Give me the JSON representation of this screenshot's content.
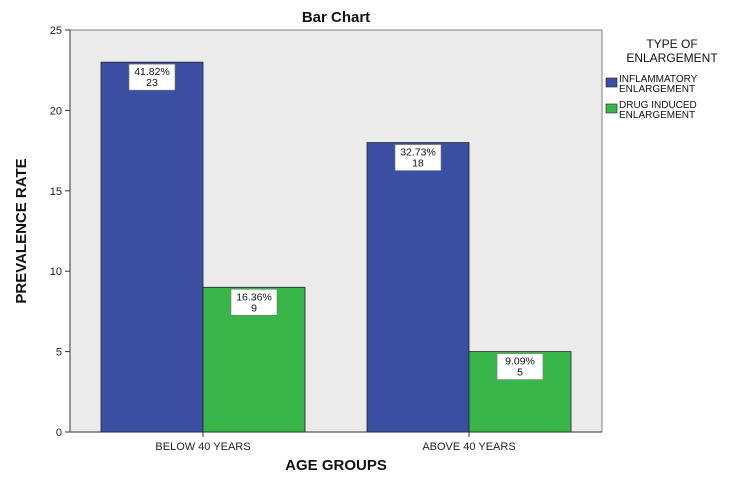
{
  "chart_data": {
    "type": "bar",
    "title": "Bar Chart",
    "xlabel": "AGE GROUPS",
    "ylabel": "PREVALENCE RATE",
    "categories": [
      "BELOW 40 YEARS",
      "ABOVE 40 YEARS"
    ],
    "ylim": [
      0,
      25
    ],
    "yticks": [
      0,
      5,
      10,
      15,
      20,
      25
    ],
    "grid": false,
    "legend": {
      "title_lines": [
        "TYPE OF",
        "ENLARGEMENT"
      ],
      "placement": "top-right outside plot"
    },
    "series": [
      {
        "name_lines": [
          "INFLAMMATORY",
          "ENLARGEMENT"
        ],
        "color": "#3b4fa3",
        "values": [
          23,
          18
        ],
        "percent_labels": [
          "41.82%",
          "32.73%"
        ]
      },
      {
        "name_lines": [
          "DRUG INDUCED",
          "ENLARGEMENT"
        ],
        "color": "#3ab54a",
        "values": [
          9,
          5
        ],
        "percent_labels": [
          "16.36%",
          "9.09%"
        ]
      }
    ],
    "plot_background": "#ebebeb"
  }
}
